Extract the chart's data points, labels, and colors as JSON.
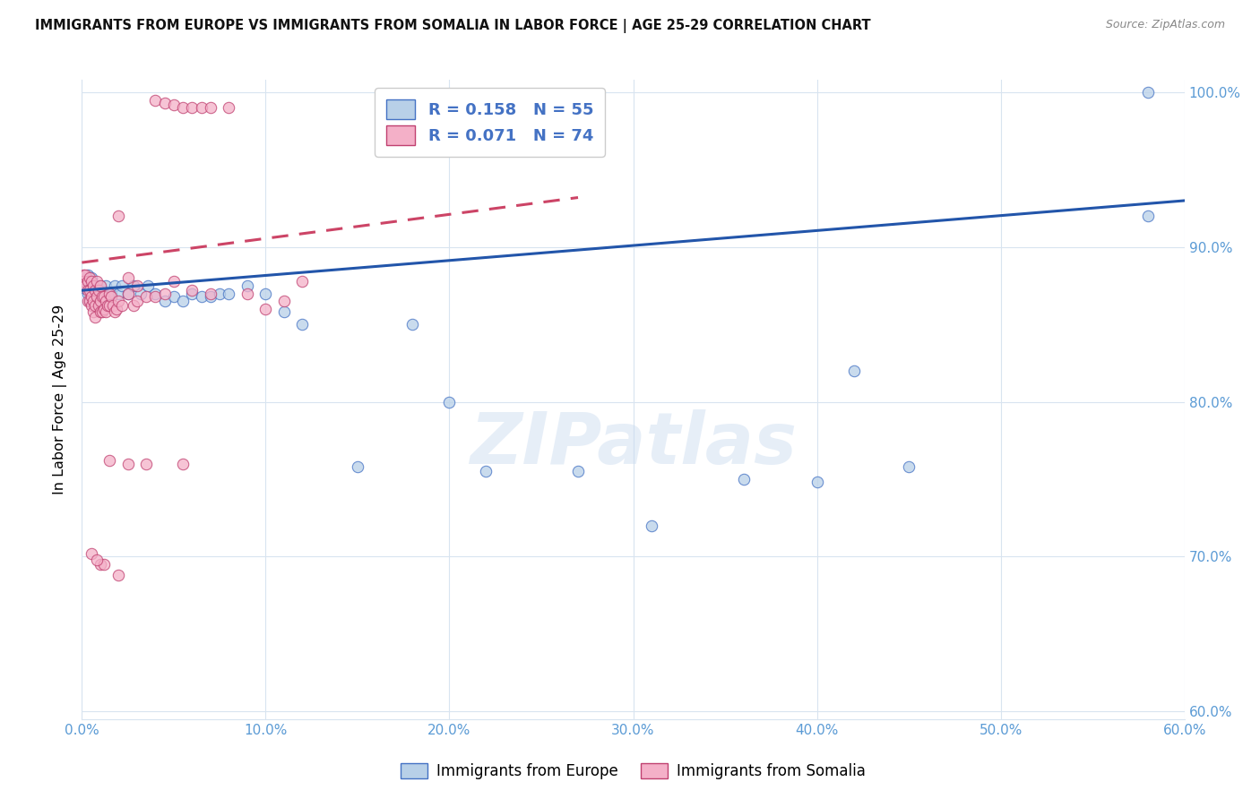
{
  "title": "IMMIGRANTS FROM EUROPE VS IMMIGRANTS FROM SOMALIA IN LABOR FORCE | AGE 25-29 CORRELATION CHART",
  "source": "Source: ZipAtlas.com",
  "ylabel": "In Labor Force | Age 25-29",
  "xlim": [
    0.0,
    0.6
  ],
  "ylim": [
    0.595,
    1.008
  ],
  "yticks": [
    0.6,
    0.7,
    0.8,
    0.9,
    1.0
  ],
  "ytick_labels": [
    "60.0%",
    "70.0%",
    "80.0%",
    "90.0%",
    "100.0%"
  ],
  "xticks": [
    0.0,
    0.1,
    0.2,
    0.3,
    0.4,
    0.5,
    0.6
  ],
  "xtick_labels": [
    "0.0%",
    "10.0%",
    "20.0%",
    "30.0%",
    "40.0%",
    "50.0%",
    "60.0%"
  ],
  "blue_face": "#b8d0e8",
  "blue_edge": "#4472c4",
  "pink_face": "#f4b0c8",
  "pink_edge": "#c04070",
  "blue_line": "#2255aa",
  "pink_line": "#cc4466",
  "axis_color": "#5b9bd5",
  "grid_color": "#d8e4f0",
  "legend_text_color": "#4472c4",
  "watermark": "ZIPatlas",
  "source_text": "Source: ZipAtlas.com",
  "legend_R_blue": "R = 0.158",
  "legend_N_blue": "N = 55",
  "legend_R_pink": "R = 0.071",
  "legend_N_pink": "N = 74",
  "europe_x": [
    0.001,
    0.002,
    0.003,
    0.003,
    0.004,
    0.004,
    0.005,
    0.005,
    0.006,
    0.006,
    0.007,
    0.007,
    0.008,
    0.008,
    0.009,
    0.01,
    0.01,
    0.011,
    0.012,
    0.013,
    0.014,
    0.015,
    0.016,
    0.018,
    0.02,
    0.022,
    0.025,
    0.028,
    0.032,
    0.036,
    0.04,
    0.045,
    0.05,
    0.055,
    0.06,
    0.065,
    0.07,
    0.075,
    0.08,
    0.09,
    0.1,
    0.11,
    0.12,
    0.15,
    0.18,
    0.2,
    0.22,
    0.27,
    0.31,
    0.36,
    0.4,
    0.42,
    0.45,
    0.58,
    0.58
  ],
  "europe_y": [
    0.878,
    0.873,
    0.882,
    0.87,
    0.875,
    0.865,
    0.88,
    0.87,
    0.876,
    0.865,
    0.872,
    0.862,
    0.875,
    0.868,
    0.87,
    0.875,
    0.865,
    0.872,
    0.868,
    0.875,
    0.87,
    0.865,
    0.87,
    0.875,
    0.87,
    0.875,
    0.87,
    0.875,
    0.87,
    0.875,
    0.87,
    0.865,
    0.868,
    0.865,
    0.87,
    0.868,
    0.868,
    0.87,
    0.87,
    0.875,
    0.87,
    0.858,
    0.85,
    0.758,
    0.85,
    0.8,
    0.755,
    0.755,
    0.72,
    0.75,
    0.748,
    0.82,
    0.758,
    0.92,
    1.0
  ],
  "somalia_x": [
    0.001,
    0.001,
    0.002,
    0.002,
    0.003,
    0.003,
    0.003,
    0.004,
    0.004,
    0.004,
    0.005,
    0.005,
    0.005,
    0.006,
    0.006,
    0.006,
    0.007,
    0.007,
    0.007,
    0.008,
    0.008,
    0.009,
    0.009,
    0.01,
    0.01,
    0.01,
    0.011,
    0.011,
    0.012,
    0.012,
    0.013,
    0.013,
    0.014,
    0.015,
    0.015,
    0.016,
    0.017,
    0.018,
    0.019,
    0.02,
    0.022,
    0.025,
    0.028,
    0.03,
    0.035,
    0.04,
    0.045,
    0.05,
    0.055,
    0.06,
    0.065,
    0.07,
    0.08,
    0.09,
    0.1,
    0.11,
    0.12,
    0.04,
    0.06,
    0.02,
    0.03,
    0.05,
    0.07,
    0.035,
    0.055,
    0.025,
    0.045,
    0.015,
    0.025,
    0.01,
    0.02,
    0.005,
    0.012,
    0.008
  ],
  "somalia_y": [
    0.882,
    0.878,
    0.882,
    0.875,
    0.878,
    0.872,
    0.865,
    0.88,
    0.872,
    0.865,
    0.878,
    0.868,
    0.862,
    0.875,
    0.865,
    0.858,
    0.872,
    0.862,
    0.855,
    0.878,
    0.868,
    0.872,
    0.862,
    0.875,
    0.865,
    0.858,
    0.868,
    0.858,
    0.868,
    0.86,
    0.865,
    0.858,
    0.862,
    0.87,
    0.862,
    0.868,
    0.862,
    0.858,
    0.86,
    0.865,
    0.862,
    0.87,
    0.862,
    0.865,
    0.868,
    0.995,
    0.993,
    0.992,
    0.99,
    0.99,
    0.99,
    0.99,
    0.99,
    0.87,
    0.86,
    0.865,
    0.878,
    0.868,
    0.872,
    0.92,
    0.875,
    0.878,
    0.87,
    0.76,
    0.76,
    0.88,
    0.87,
    0.762,
    0.76,
    0.695,
    0.688,
    0.702,
    0.695,
    0.698
  ]
}
